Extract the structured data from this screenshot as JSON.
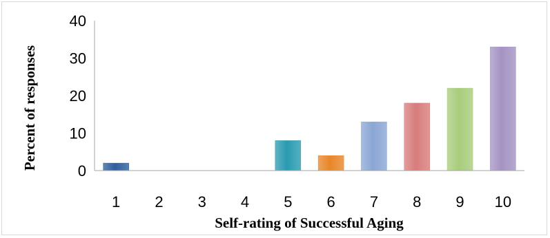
{
  "chart_data": {
    "type": "bar",
    "title": "",
    "xlabel": "Self-rating of Successful Aging",
    "ylabel": "Percent of responses",
    "categories": [
      "1",
      "2",
      "3",
      "4",
      "5",
      "6",
      "7",
      "8",
      "9",
      "10"
    ],
    "values": [
      2,
      0,
      0,
      0,
      8,
      4,
      13,
      18,
      22,
      33
    ],
    "ylim": [
      0,
      40
    ],
    "yticks": [
      "0",
      "10",
      "20",
      "30",
      "40"
    ],
    "grid": false,
    "legend": "none",
    "bar_colors": [
      "#2e5f9e",
      "#2e5f9e",
      "#2e5f9e",
      "#2e5f9e",
      "#2a9bb0",
      "#e8862a",
      "#8aa6d4",
      "#d87c7c",
      "#a8cc7c",
      "#a493c2"
    ]
  }
}
